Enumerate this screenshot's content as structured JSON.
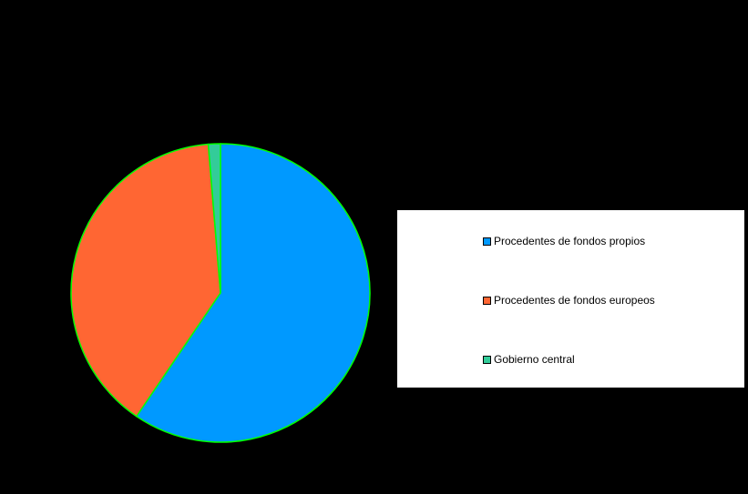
{
  "chart_data": {
    "type": "pie",
    "title": "",
    "categories": [
      "Procedentes de fondos propios",
      "Procedentes de fondos europeos",
      "Gobierno central"
    ],
    "values": [
      59.5,
      39.2,
      1.3
    ],
    "colors": [
      "#0099ff",
      "#ff6633",
      "#33cc99"
    ],
    "slice_border_color": "#00ff00",
    "legend_placement": "right"
  }
}
